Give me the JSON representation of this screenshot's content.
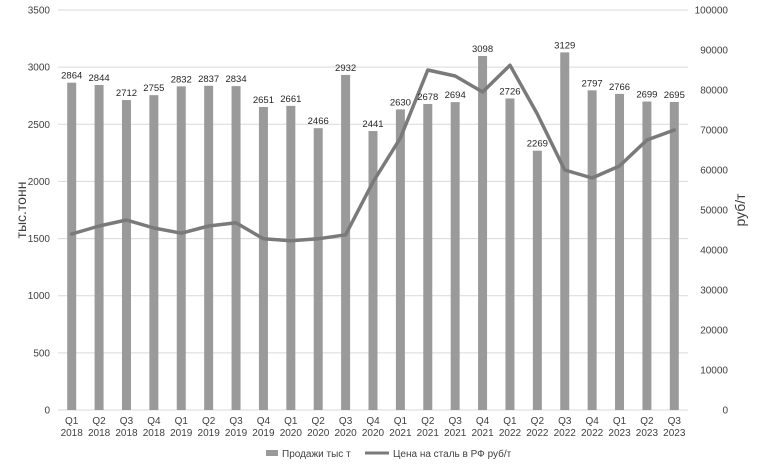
{
  "chart_data": {
    "type": "bar",
    "combo": "bar-line-dual-axis",
    "categories": [
      [
        "Q1",
        "2018"
      ],
      [
        "Q2",
        "2018"
      ],
      [
        "Q3",
        "2018"
      ],
      [
        "Q4",
        "2018"
      ],
      [
        "Q1",
        "2019"
      ],
      [
        "Q2",
        "2019"
      ],
      [
        "Q3",
        "2019"
      ],
      [
        "Q4",
        "2019"
      ],
      [
        "Q1",
        "2020"
      ],
      [
        "Q2",
        "2020"
      ],
      [
        "Q3",
        "2020"
      ],
      [
        "Q4",
        "2020"
      ],
      [
        "Q1",
        "2021"
      ],
      [
        "Q2",
        "2021"
      ],
      [
        "Q3",
        "2021"
      ],
      [
        "Q4",
        "2021"
      ],
      [
        "Q1",
        "2022"
      ],
      [
        "Q2",
        "2022"
      ],
      [
        "Q3",
        "2022"
      ],
      [
        "Q4",
        "2022"
      ],
      [
        "Q1",
        "2023"
      ],
      [
        "Q2",
        "2023"
      ],
      [
        "Q3",
        "2023"
      ]
    ],
    "series": [
      {
        "name": "Продажи тыс т",
        "type": "bar",
        "axis": "left",
        "color": "#9a9a9a",
        "values": [
          2864,
          2844,
          2712,
          2755,
          2832,
          2837,
          2834,
          2651,
          2661,
          2466,
          2932,
          2441,
          2630,
          2678,
          2694,
          3098,
          2726,
          2269,
          3129,
          2797,
          2766,
          2699,
          2695
        ]
      },
      {
        "name": "Цена на сталь в РФ руб/т",
        "type": "line",
        "axis": "right",
        "color": "#7a7a7a",
        "values": [
          44000,
          46000,
          47500,
          45500,
          44200,
          46000,
          46800,
          42800,
          42300,
          42800,
          43800,
          57000,
          68000,
          85000,
          83500,
          79500,
          86200,
          74000,
          60000,
          58000,
          61000,
          67500,
          70000
        ]
      }
    ],
    "yleft": {
      "label": "тыс.тонн",
      "lim": [
        0,
        3500
      ],
      "ticks": [
        "0",
        "500",
        "1000",
        "1500",
        "2000",
        "2500",
        "3000",
        "3500"
      ]
    },
    "yright": {
      "label": "руб/т",
      "lim": [
        0,
        100000
      ],
      "ticks": [
        "0",
        "10000",
        "20000",
        "30000",
        "40000",
        "50000",
        "60000",
        "70000",
        "80000",
        "90000",
        "100000"
      ]
    },
    "grid": true,
    "legend": "bottom",
    "data_labels": true
  },
  "legend": {
    "bars_label": "Продажи тыс т",
    "line_label": "Цена на сталь в РФ руб/т"
  },
  "axes": {
    "left_title": "тыс.тонн",
    "right_title": "руб/т"
  }
}
